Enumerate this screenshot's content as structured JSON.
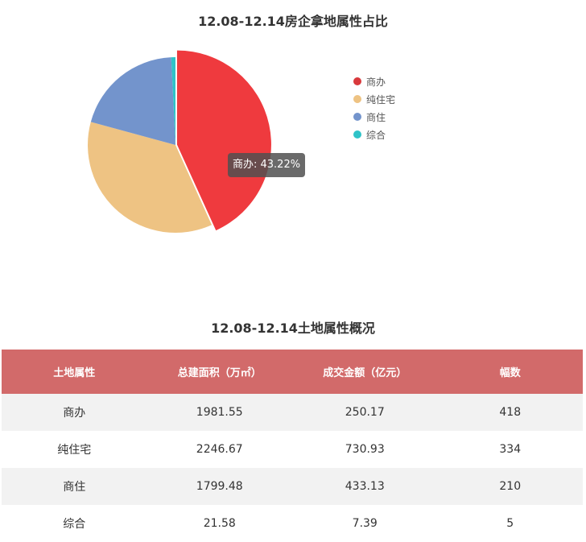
{
  "chart_title": "12.08-12.14房企拿地属性占比",
  "table_title": "12.08-12.14土地属性概况",
  "tooltip": {
    "text": "商办: 43.22%"
  },
  "chart_data": {
    "type": "pie",
    "title": "12.08-12.14房企拿地属性占比",
    "categories": [
      "商办",
      "纯住宅",
      "商住",
      "综合"
    ],
    "values": [
      43.22,
      36.0,
      20.0,
      0.78
    ],
    "colors": [
      "#ef3a3e",
      "#eec383",
      "#7394cc",
      "#2fc3c8"
    ],
    "legend_placement": "right",
    "highlighted": "商办"
  },
  "legend": [
    {
      "label": "商办",
      "color": "#d9393c"
    },
    {
      "label": "纯住宅",
      "color": "#eec383"
    },
    {
      "label": "商住",
      "color": "#7394cc"
    },
    {
      "label": "综合",
      "color": "#2fc3c8"
    }
  ],
  "table": {
    "headers": [
      "土地属性",
      "总建面积（万㎡）",
      "成交金额（亿元）",
      "幅数"
    ],
    "rows": [
      [
        "商办",
        "1981.55",
        "250.17",
        "418"
      ],
      [
        "纯住宅",
        "2246.67",
        "730.93",
        "334"
      ],
      [
        "商住",
        "1799.48",
        "433.13",
        "210"
      ],
      [
        "综合",
        "21.58",
        "7.39",
        "5"
      ]
    ]
  }
}
